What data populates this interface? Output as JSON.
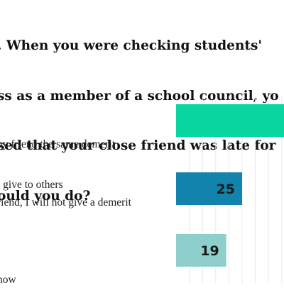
{
  "title_lines": [
    ". When you were checking students'",
    "ss as a member of a school council, yo",
    "sed that your close friend was late for",
    "ould you do?"
  ],
  "colors": {
    "background": "#ffffff",
    "grid": "#e9e9e9",
    "value_label": "#1a1a1a"
  },
  "chart_data": {
    "type": "bar",
    "orientation": "horizontal",
    "categories": [
      {
        "lines": [
          "ny friend the same demerit",
          "l give to others"
        ]
      },
      {
        "lines": [
          "riend, I will not give a demerit"
        ]
      },
      {
        "lines": [
          "now"
        ]
      }
    ],
    "values": [
      57,
      25,
      19
    ],
    "value_labels": [
      "",
      "25",
      "19"
    ],
    "bar_colors": [
      "#08d5a0",
      "#1283ad",
      "#8ecfcc"
    ],
    "xlim": [
      0,
      60
    ],
    "grid": true,
    "legend": "none"
  }
}
